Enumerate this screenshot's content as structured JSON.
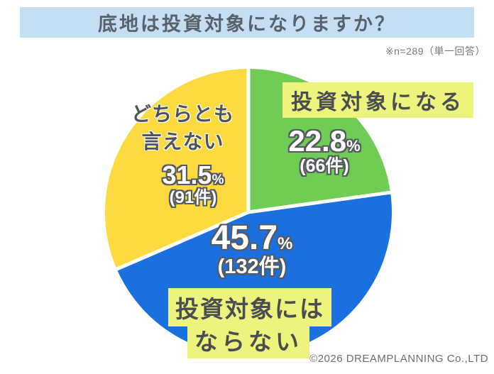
{
  "title": "底地は投資対象になりますか？",
  "note": "※n=289（単一回答）",
  "copyright": "©2026 DREAMPLANNING Co.,LTD",
  "colors": {
    "banner_bg": "#c6def4",
    "banner_text": "#57626c",
    "highlight_bg": "#edf37c",
    "green": "#6fcd55",
    "blue": "#1b70e0",
    "yellow": "#fdda3f",
    "number_fill": "#ffffff",
    "number_outline": "#565a5e"
  },
  "chart_data": {
    "type": "pie",
    "title": "底地は投資対象になりますか？",
    "sample_note": "※n=289（単一回答）",
    "start_angle_deg": -90,
    "direction": "clockwise",
    "center": [
      350,
      299
    ],
    "radius": 202,
    "slices": [
      {
        "label": "投資対象になる",
        "pct": 22.8,
        "count": 66,
        "count_label": "(66件)",
        "color": "#6fcd55"
      },
      {
        "label": "投資対象にはならない",
        "pct": 45.7,
        "count": 132,
        "count_label": "(132件)",
        "color": "#1b70e0"
      },
      {
        "label": "どちらとも言えない",
        "pct": 31.5,
        "count": 91,
        "count_label": "(91件)",
        "color": "#fdda3f"
      }
    ]
  },
  "labels": {
    "green_name": "投資対象になる",
    "green_pct": "22.8",
    "green_unit": "%",
    "green_count": "(66件)",
    "yellow_name_line1": "どちらとも",
    "yellow_name_line2": "言えない",
    "yellow_pct": "31.5",
    "yellow_unit": "%",
    "yellow_count": "(91件)",
    "blue_pct": "45.7",
    "blue_unit": "%",
    "blue_count": "(132件)",
    "blue_name_line1": "投資対象には",
    "blue_name_line2": "ならない"
  }
}
